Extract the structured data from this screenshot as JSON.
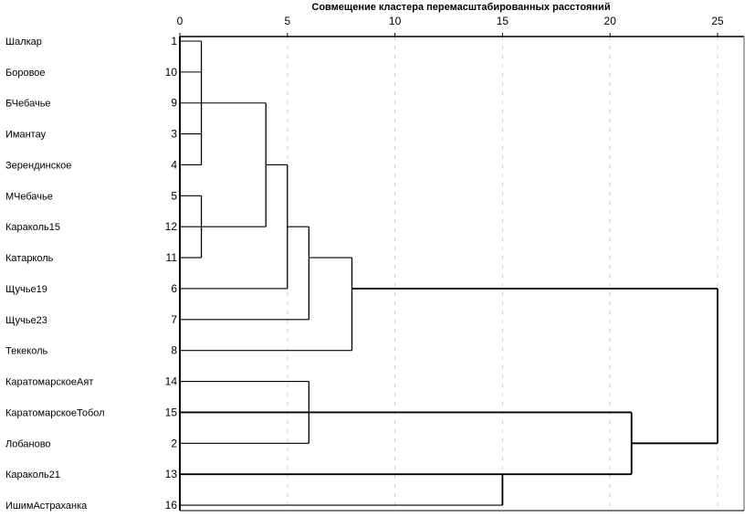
{
  "chart_data": {
    "type": "dendrogram",
    "title": "Совмещение кластера перемасштабированных расстояний",
    "xlim": [
      0,
      25
    ],
    "xticks": [
      0,
      5,
      10,
      15,
      20,
      25
    ],
    "grid": "vertical-dashed",
    "leaves": [
      {
        "label": "Шалкар",
        "id": "1"
      },
      {
        "label": "Боровое",
        "id": "10"
      },
      {
        "label": "БЧебачье",
        "id": "9"
      },
      {
        "label": "Имантау",
        "id": "3"
      },
      {
        "label": "Зерендинское",
        "id": "4"
      },
      {
        "label": "МЧебачье",
        "id": "5"
      },
      {
        "label": "Караколь15",
        "id": "12"
      },
      {
        "label": "Катарколь",
        "id": "11"
      },
      {
        "label": "Щучье19",
        "id": "6"
      },
      {
        "label": "Щучье23",
        "id": "7"
      },
      {
        "label": "Текеколь",
        "id": "8"
      },
      {
        "label": "КаратомарскоеАят",
        "id": "14"
      },
      {
        "label": "КаратомарскоеТобол",
        "id": "15"
      },
      {
        "label": "Лобаново",
        "id": "2"
      },
      {
        "label": "Караколь21",
        "id": "13"
      },
      {
        "label": "ИшимАстраханка",
        "id": "16"
      }
    ],
    "horizontal_segments": [
      {
        "row": 0,
        "x1": 0,
        "x2": 1
      },
      {
        "row": 1,
        "x1": 0,
        "x2": 1
      },
      {
        "row": 2,
        "x1": 0,
        "x2": 4
      },
      {
        "row": 3,
        "x1": 0,
        "x2": 1
      },
      {
        "row": 4,
        "x1": 0,
        "x2": 1
      },
      {
        "row": 4,
        "x1": 4,
        "x2": 5
      },
      {
        "row": 5,
        "x1": 0,
        "x2": 1
      },
      {
        "row": 6,
        "x1": 0,
        "x2": 4
      },
      {
        "row": 6,
        "x1": 5,
        "x2": 6
      },
      {
        "row": 7,
        "x1": 0,
        "x2": 1
      },
      {
        "row": 7,
        "x1": 6,
        "x2": 8
      },
      {
        "row": 8,
        "x1": 0,
        "x2": 5
      },
      {
        "row": 8,
        "x1": 8,
        "x2": 25
      },
      {
        "row": 9,
        "x1": 0,
        "x2": 6
      },
      {
        "row": 10,
        "x1": 0,
        "x2": 8
      },
      {
        "row": 11,
        "x1": 0,
        "x2": 6
      },
      {
        "row": 12,
        "x1": 0,
        "x2": 21
      },
      {
        "row": 13,
        "x1": 0,
        "x2": 6
      },
      {
        "row": 13,
        "x1": 21,
        "x2": 25
      },
      {
        "row": 14,
        "x1": 0,
        "x2": 21
      },
      {
        "row": 15,
        "x1": 0,
        "x2": 15
      }
    ],
    "vertical_segments": [
      {
        "x": 1,
        "r1": 0,
        "r2": 4
      },
      {
        "x": 1,
        "r1": 5,
        "r2": 7
      },
      {
        "x": 4,
        "r1": 2,
        "r2": 6
      },
      {
        "x": 5,
        "r1": 4,
        "r2": 8
      },
      {
        "x": 6,
        "r1": 6,
        "r2": 9
      },
      {
        "x": 8,
        "r1": 7,
        "r2": 10
      },
      {
        "x": 25,
        "r1": 8,
        "r2": 13
      },
      {
        "x": 6,
        "r1": 11,
        "r2": 13
      },
      {
        "x": 21,
        "r1": 12,
        "r2": 14
      },
      {
        "x": 15,
        "r1": 14,
        "r2": 15
      }
    ]
  }
}
